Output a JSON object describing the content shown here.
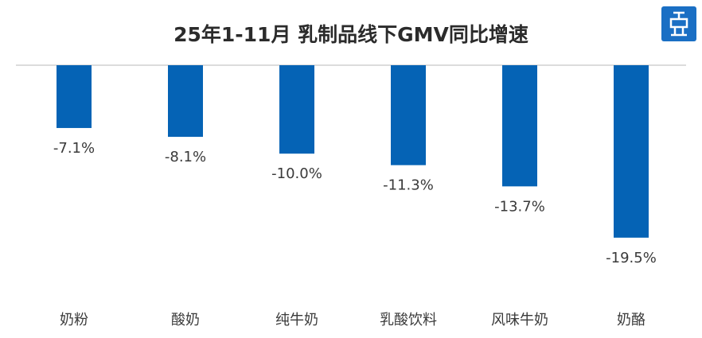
{
  "chart_data": {
    "type": "bar",
    "title": "25年1-11月 乳制品线下GMV同比增速",
    "categories": [
      "奶粉",
      "酸奶",
      "纯牛奶",
      "乳酸饮料",
      "风味牛奶",
      "奶酪"
    ],
    "values": [
      -7.1,
      -8.1,
      -10.0,
      -11.3,
      -13.7,
      -19.5
    ],
    "value_labels": [
      "-7.1%",
      "-8.1%",
      "-10.0%",
      "-11.3%",
      "-13.7%",
      "-19.5%"
    ],
    "color": "#0563b5",
    "ylim": [
      -25,
      0
    ]
  }
}
